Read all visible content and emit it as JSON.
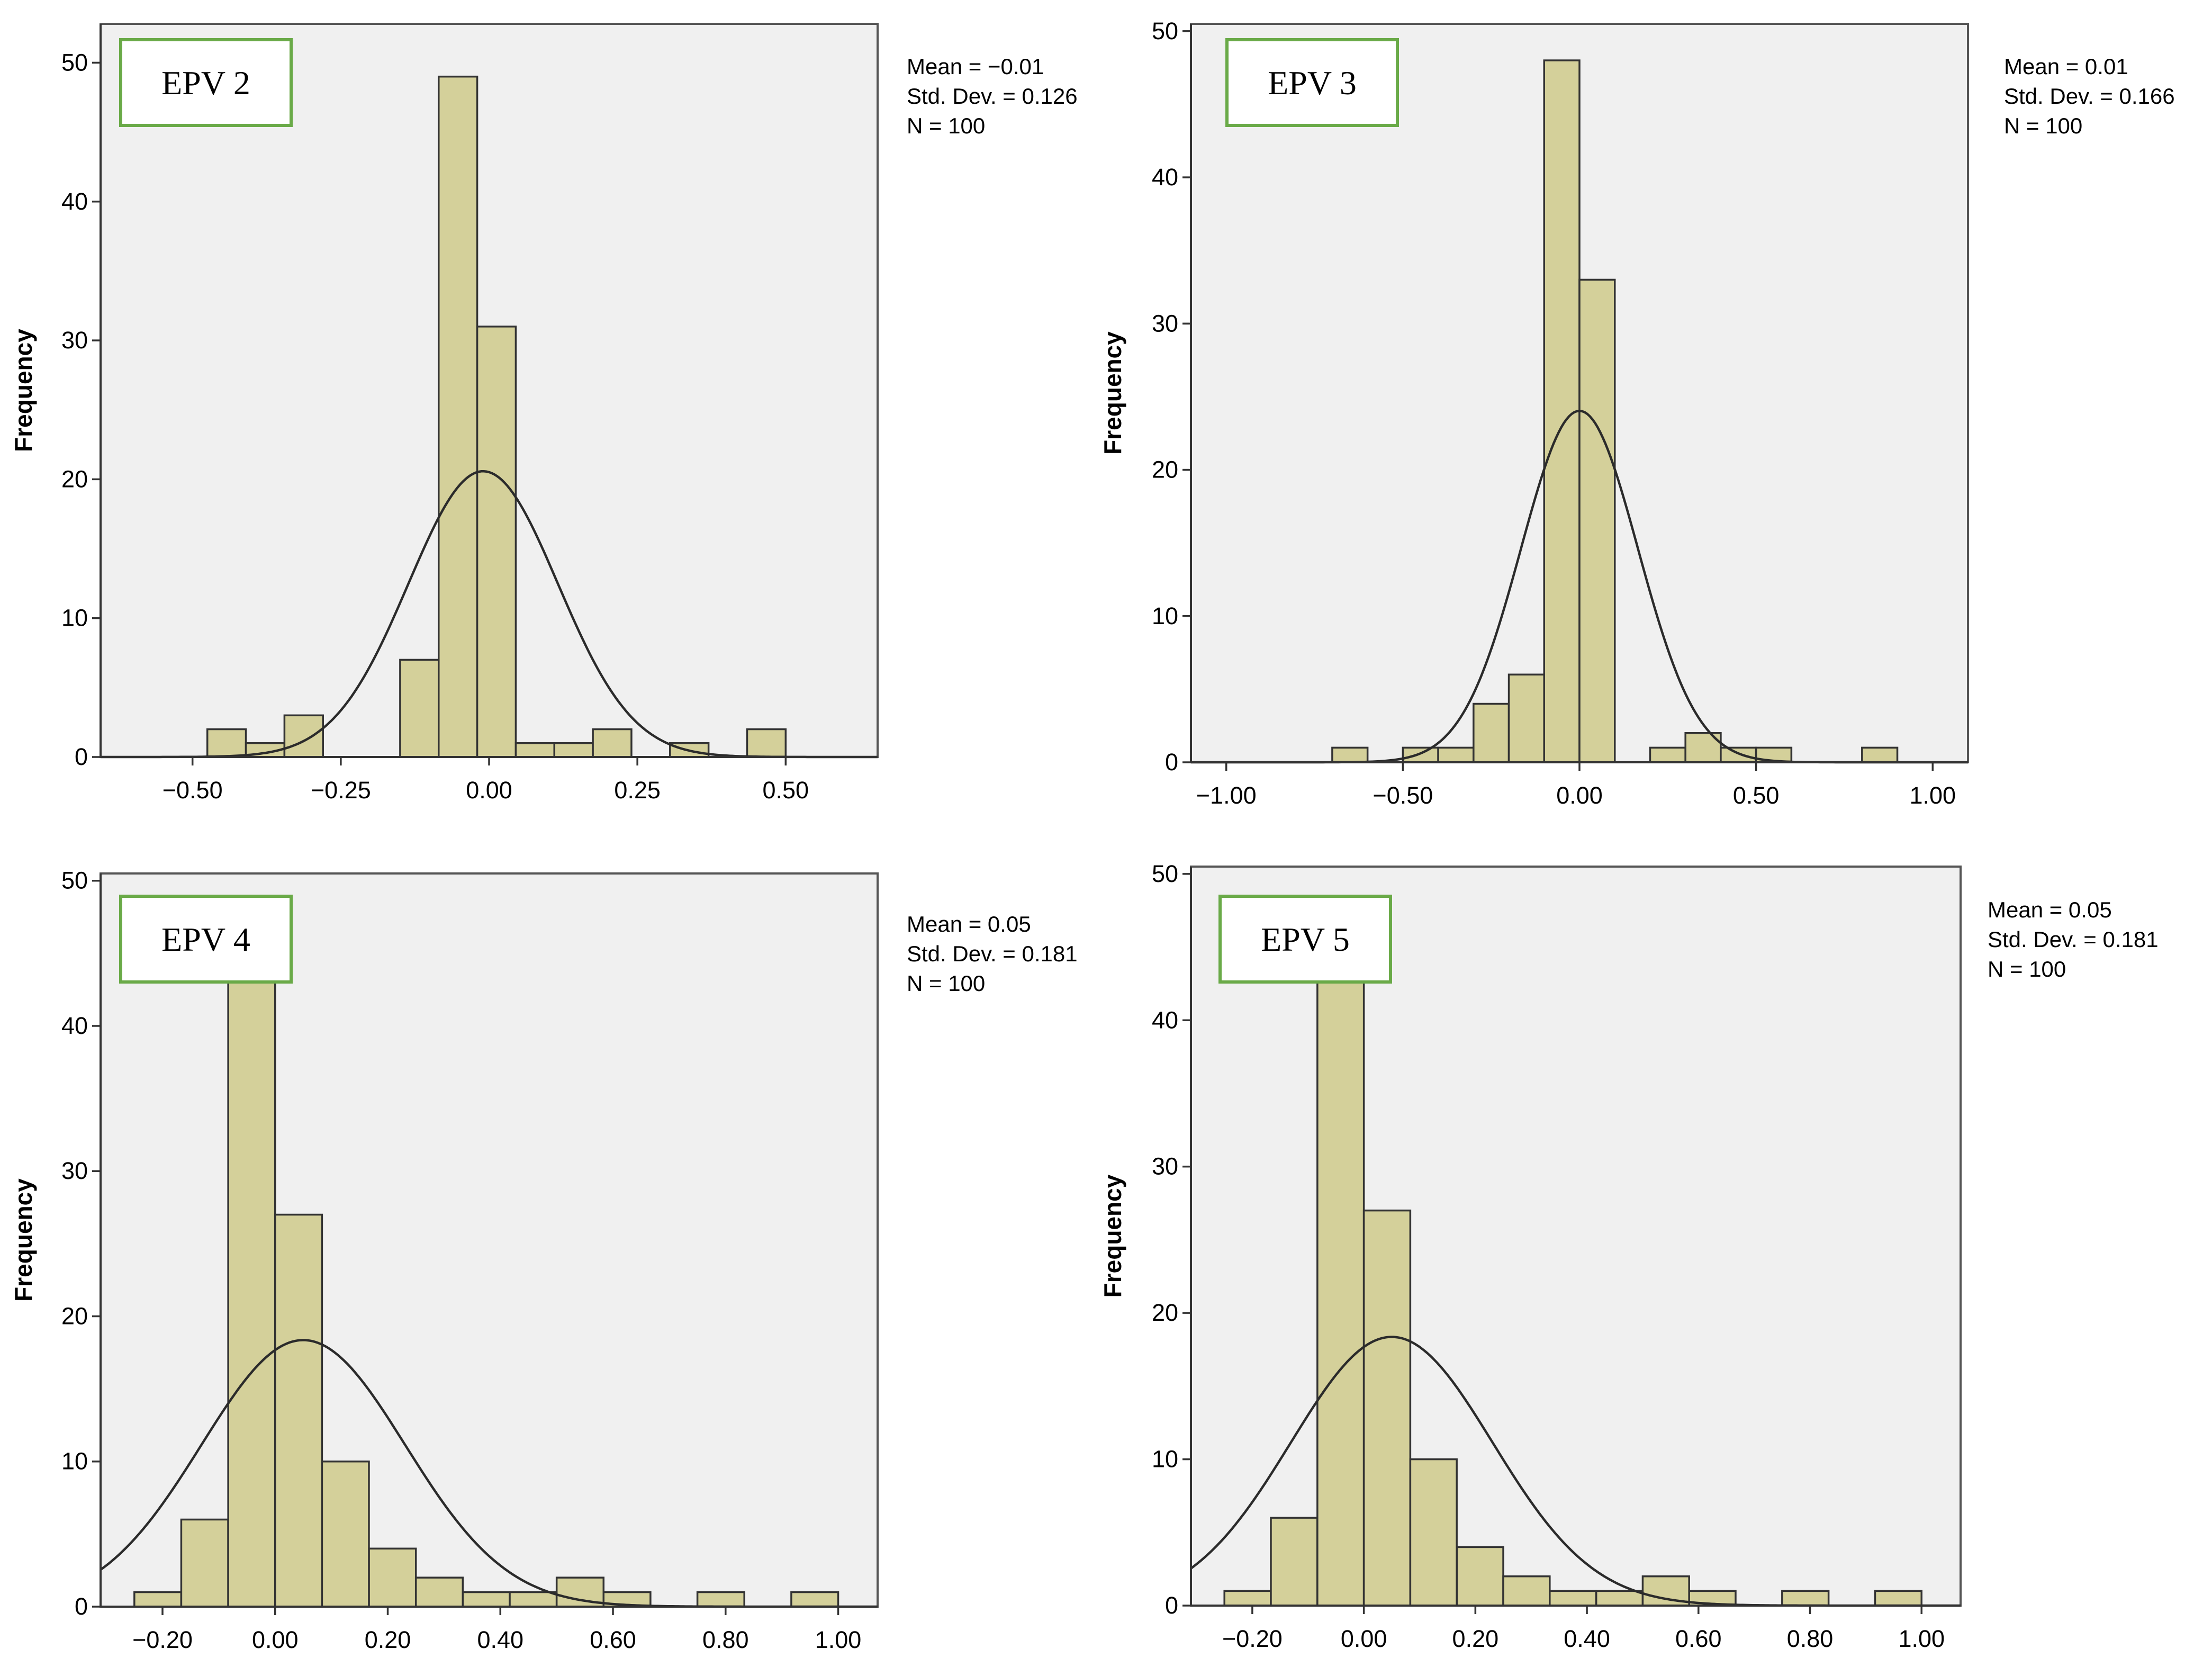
{
  "colors": {
    "bar_fill": "#d4d09a",
    "bar_stroke": "#333333",
    "plot_background": "#f0f0f0",
    "curve": "#2b2b2b",
    "title_border": "#6aaa48"
  },
  "chart_data": [
    {
      "type": "bar",
      "title": "EPV 2",
      "ylabel": "Frequency",
      "xlabel": "",
      "xlim": [
        -0.655,
        0.655
      ],
      "ylim": [
        0,
        52.8
      ],
      "yticks": [
        0,
        10,
        20,
        30,
        40,
        50
      ],
      "xticks": [
        -0.5,
        -0.25,
        0.0,
        0.25,
        0.5
      ],
      "xtick_labels": [
        "−0.50",
        "−0.25",
        "0.00",
        "0.25",
        "0.50"
      ],
      "bin_width": 0.065,
      "bins": [
        {
          "x0": -0.475,
          "count": 2
        },
        {
          "x0": -0.41,
          "count": 1
        },
        {
          "x0": -0.345,
          "count": 3
        },
        {
          "x0": -0.28,
          "count": 0
        },
        {
          "x0": -0.215,
          "count": 0
        },
        {
          "x0": -0.15,
          "count": 7
        },
        {
          "x0": -0.085,
          "count": 49
        },
        {
          "x0": -0.02,
          "count": 31
        },
        {
          "x0": 0.045,
          "count": 1
        },
        {
          "x0": 0.11,
          "count": 1
        },
        {
          "x0": 0.175,
          "count": 2
        },
        {
          "x0": 0.24,
          "count": 0
        },
        {
          "x0": 0.305,
          "count": 1
        },
        {
          "x0": 0.37,
          "count": 0
        },
        {
          "x0": 0.435,
          "count": 2
        }
      ],
      "normal_curve": {
        "mean": -0.01,
        "std": 0.126,
        "n": 100
      },
      "stats": [
        "Mean = −0.01",
        "Std. Dev. = 0.126",
        "N = 100"
      ]
    },
    {
      "type": "bar",
      "title": "EPV 3",
      "ylabel": "Frequency",
      "xlabel": "",
      "xlim": [
        -1.1,
        1.1
      ],
      "ylim": [
        0,
        50.5
      ],
      "yticks": [
        0,
        10,
        20,
        30,
        40,
        50
      ],
      "xticks": [
        -1.0,
        -0.5,
        0.0,
        0.5,
        1.0
      ],
      "xtick_labels": [
        "−1.00",
        "−0.50",
        "0.00",
        "0.50",
        "1.00"
      ],
      "bin_width": 0.1,
      "bins": [
        {
          "x0": -0.7,
          "count": 1
        },
        {
          "x0": -0.6,
          "count": 0
        },
        {
          "x0": -0.5,
          "count": 1
        },
        {
          "x0": -0.4,
          "count": 1
        },
        {
          "x0": -0.3,
          "count": 4
        },
        {
          "x0": -0.2,
          "count": 6
        },
        {
          "x0": -0.1,
          "count": 48
        },
        {
          "x0": 0.0,
          "count": 33
        },
        {
          "x0": 0.1,
          "count": 0
        },
        {
          "x0": 0.2,
          "count": 1
        },
        {
          "x0": 0.3,
          "count": 2
        },
        {
          "x0": 0.4,
          "count": 1
        },
        {
          "x0": 0.5,
          "count": 1
        },
        {
          "x0": 0.6,
          "count": 0
        },
        {
          "x0": 0.7,
          "count": 0
        },
        {
          "x0": 0.8,
          "count": 1
        }
      ],
      "normal_curve": {
        "mean": 0.0,
        "std": 0.166,
        "n": 100
      },
      "stats": [
        "Mean = 0.01",
        "Std. Dev. = 0.166",
        "N = 100"
      ]
    },
    {
      "type": "bar",
      "title": "EPV 4",
      "ylabel": "Frequency",
      "xlabel": "",
      "xlim": [
        -0.31,
        1.07
      ],
      "ylim": [
        0,
        50.5
      ],
      "yticks": [
        0,
        10,
        20,
        30,
        40,
        50
      ],
      "xticks": [
        -0.2,
        0.0,
        0.2,
        0.4,
        0.6,
        0.8,
        1.0
      ],
      "xtick_labels": [
        "−0.20",
        "0.00",
        "0.20",
        "0.40",
        "0.60",
        "0.80",
        "1.00"
      ],
      "bin_width": 0.0833,
      "bins": [
        {
          "x0": -0.25,
          "count": 1
        },
        {
          "x0": -0.1667,
          "count": 6
        },
        {
          "x0": -0.0833,
          "count": 43
        },
        {
          "x0": 0.0,
          "count": 27
        },
        {
          "x0": 0.0833,
          "count": 10
        },
        {
          "x0": 0.1667,
          "count": 4
        },
        {
          "x0": 0.25,
          "count": 2
        },
        {
          "x0": 0.3333,
          "count": 1
        },
        {
          "x0": 0.4167,
          "count": 1
        },
        {
          "x0": 0.5,
          "count": 2
        },
        {
          "x0": 0.5833,
          "count": 1
        },
        {
          "x0": 0.6667,
          "count": 0
        },
        {
          "x0": 0.75,
          "count": 1
        },
        {
          "x0": 0.8333,
          "count": 0
        },
        {
          "x0": 0.9167,
          "count": 1
        }
      ],
      "normal_curve": {
        "mean": 0.05,
        "std": 0.181,
        "n": 100
      },
      "stats": [
        "Mean = 0.05",
        "Std. Dev. = 0.181",
        "N = 100"
      ]
    },
    {
      "type": "bar",
      "title": "EPV 5",
      "ylabel": "Frequency",
      "xlabel": "",
      "xlim": [
        -0.31,
        1.07
      ],
      "ylim": [
        0,
        50.5
      ],
      "yticks": [
        0,
        10,
        20,
        30,
        40,
        50
      ],
      "xticks": [
        -0.2,
        0.0,
        0.2,
        0.4,
        0.6,
        0.8,
        1.0
      ],
      "xtick_labels": [
        "−0.20",
        "0.00",
        "0.20",
        "0.40",
        "0.60",
        "0.80",
        "1.00"
      ],
      "bin_width": 0.0833,
      "bins": [
        {
          "x0": -0.25,
          "count": 1
        },
        {
          "x0": -0.1667,
          "count": 6
        },
        {
          "x0": -0.0833,
          "count": 43
        },
        {
          "x0": 0.0,
          "count": 27
        },
        {
          "x0": 0.0833,
          "count": 10
        },
        {
          "x0": 0.1667,
          "count": 4
        },
        {
          "x0": 0.25,
          "count": 2
        },
        {
          "x0": 0.3333,
          "count": 1
        },
        {
          "x0": 0.4167,
          "count": 1
        },
        {
          "x0": 0.5,
          "count": 2
        },
        {
          "x0": 0.5833,
          "count": 1
        },
        {
          "x0": 0.6667,
          "count": 0
        },
        {
          "x0": 0.75,
          "count": 1
        },
        {
          "x0": 0.8333,
          "count": 0
        },
        {
          "x0": 0.9167,
          "count": 1
        }
      ],
      "normal_curve": {
        "mean": 0.05,
        "std": 0.181,
        "n": 100
      },
      "stats": [
        "Mean = 0.05",
        "Std. Dev. = 0.181",
        "N = 100"
      ]
    }
  ]
}
